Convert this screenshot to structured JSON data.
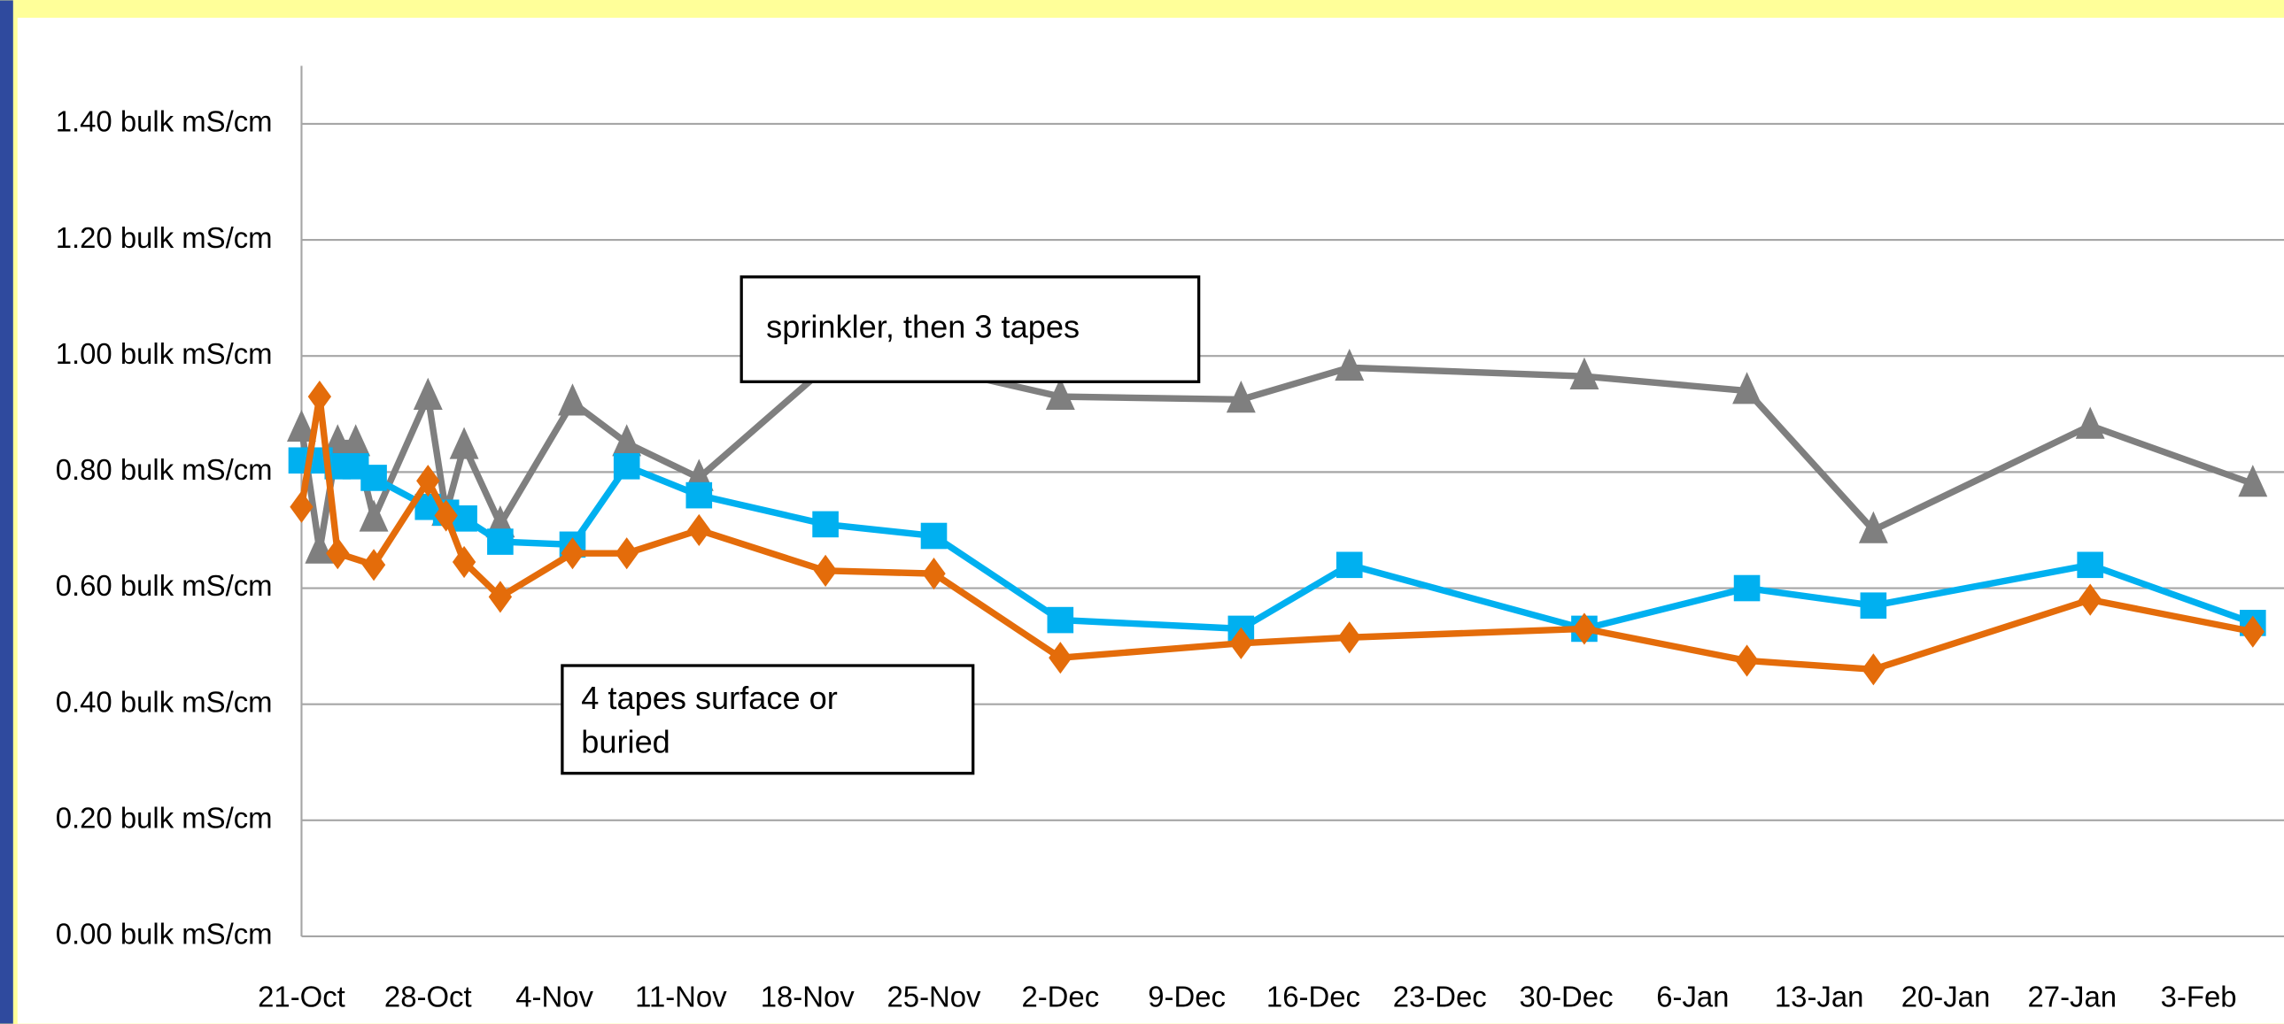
{
  "chart_data": {
    "type": "line",
    "xlim": [
      "21-Oct",
      "7-Feb"
    ],
    "xticks": [
      "21-Oct",
      "28-Oct",
      "4-Nov",
      "11-Nov",
      "18-Nov",
      "25-Nov",
      "2-Dec",
      "9-Dec",
      "16-Dec",
      "23-Dec",
      "30-Dec",
      "6-Jan",
      "13-Jan",
      "20-Jan",
      "27-Jan",
      "3-Feb"
    ],
    "ylim": [
      0,
      1.5
    ],
    "yticks": [
      {
        "value": 0,
        "label": "0.00 bulk mS/cm"
      },
      {
        "value": 0.2,
        "label": "0.20 bulk mS/cm"
      },
      {
        "value": 0.4,
        "label": "0.40 bulk mS/cm"
      },
      {
        "value": 0.6,
        "label": "0.60 bulk mS/cm"
      },
      {
        "value": 0.8,
        "label": "0.80 bulk mS/cm"
      },
      {
        "value": 1.0,
        "label": "1.00 bulk mS/cm"
      },
      {
        "value": 1.2,
        "label": "1.20 bulk mS/cm"
      },
      {
        "value": 1.4,
        "label": "1.40 bulk mS/cm"
      }
    ],
    "grid": true,
    "series": [
      {
        "color": "#7f7f7f",
        "marker": "triangle",
        "x": [
          "21-Oct",
          "22-Oct",
          "23-Oct",
          "24-Oct",
          "25-Oct",
          "28-Oct",
          "29-Oct",
          "30-Oct",
          "1-Nov",
          "5-Nov",
          "8-Nov",
          "12-Nov",
          "19-Nov",
          "25-Nov",
          "2-Dec",
          "12-Dec",
          "18-Dec",
          "31-Dec",
          "9-Jan",
          "16-Jan",
          "28-Jan",
          "6-Feb"
        ],
        "values": [
          0.875,
          0.665,
          0.85,
          0.85,
          0.72,
          0.93,
          0.73,
          0.845,
          0.71,
          0.92,
          0.85,
          0.79,
          0.98,
          0.98,
          0.93,
          0.925,
          0.98,
          0.965,
          0.94,
          0.7,
          0.88,
          0.78
        ]
      },
      {
        "color": "#00b0f0",
        "marker": "square",
        "x": [
          "21-Oct",
          "22-Oct",
          "23-Oct",
          "24-Oct",
          "25-Oct",
          "28-Oct",
          "29-Oct",
          "30-Oct",
          "1-Nov",
          "5-Nov",
          "8-Nov",
          "12-Nov",
          "19-Nov",
          "25-Nov",
          "2-Dec",
          "12-Dec",
          "18-Dec",
          "31-Dec",
          "9-Jan",
          "16-Jan",
          "28-Jan",
          "6-Feb"
        ],
        "values": [
          0.82,
          0.82,
          0.81,
          0.81,
          0.79,
          0.74,
          0.73,
          0.72,
          0.68,
          0.675,
          0.81,
          0.76,
          0.71,
          0.69,
          0.545,
          0.53,
          0.64,
          0.53,
          0.6,
          0.57,
          0.64,
          0.54
        ]
      },
      {
        "color": "#e46c0a",
        "marker": "diamond",
        "x": [
          "21-Oct",
          "22-Oct",
          "23-Oct",
          "25-Oct",
          "28-Oct",
          "29-Oct",
          "30-Oct",
          "1-Nov",
          "5-Nov",
          "8-Nov",
          "12-Nov",
          "19-Nov",
          "25-Nov",
          "2-Dec",
          "12-Dec",
          "18-Dec",
          "31-Dec",
          "9-Jan",
          "16-Jan",
          "28-Jan",
          "6-Feb"
        ],
        "values": [
          0.74,
          0.93,
          0.66,
          0.64,
          0.785,
          0.725,
          0.645,
          0.585,
          0.66,
          0.66,
          0.7,
          0.63,
          0.625,
          0.48,
          0.505,
          0.515,
          0.53,
          0.475,
          0.46,
          0.58,
          0.525
        ]
      }
    ],
    "annotations": [
      {
        "lines": [
          "sprinkler, then 3 tapes"
        ]
      },
      {
        "lines": [
          "4 tapes surface or",
          "buried"
        ]
      }
    ]
  }
}
